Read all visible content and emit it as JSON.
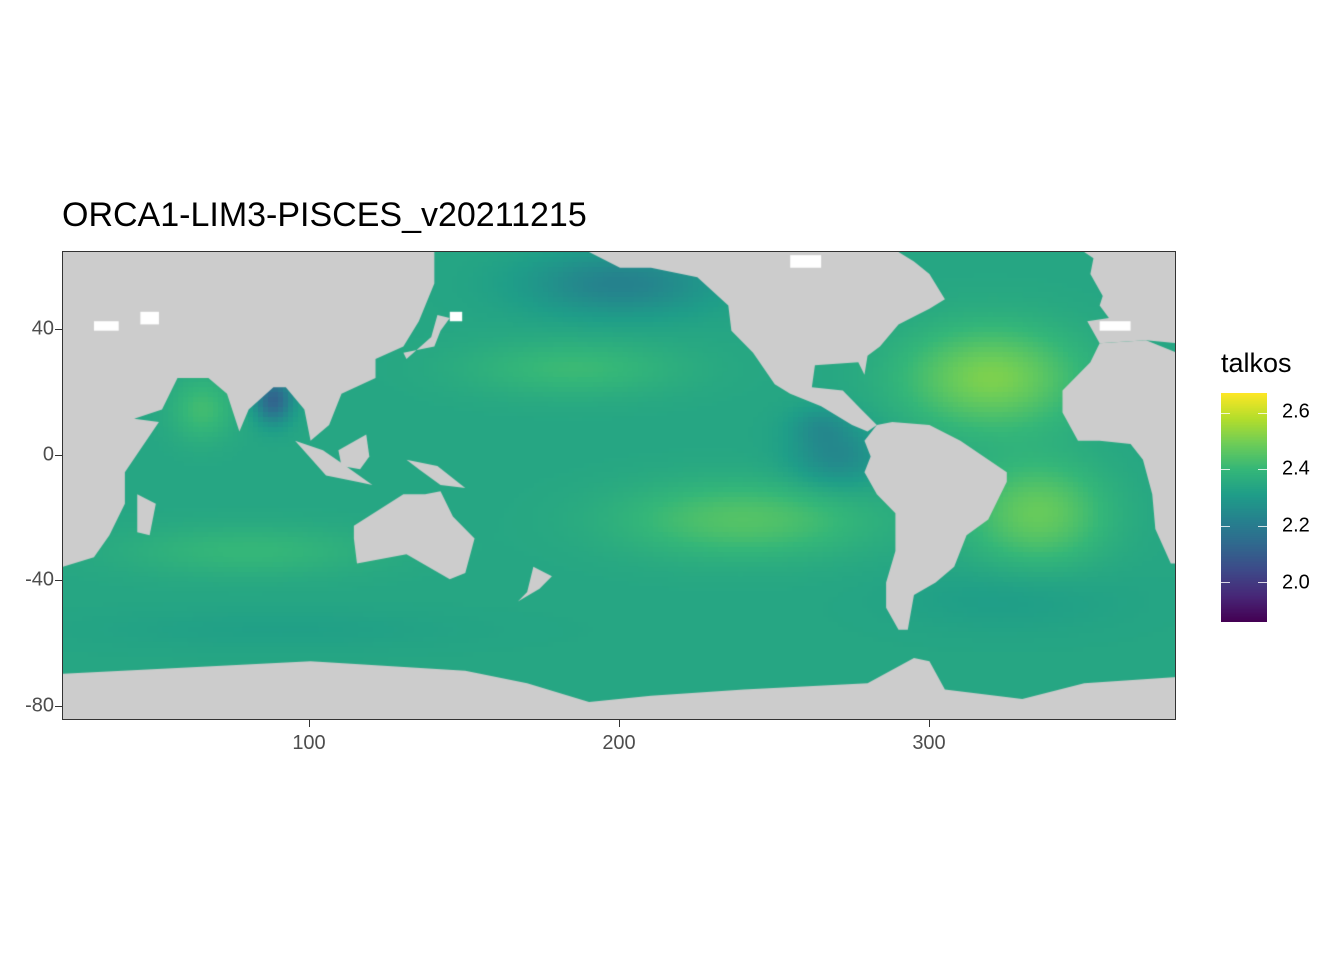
{
  "title": "ORCA1-LIM3-PISCES_v20211215",
  "chart_data": {
    "type": "heatmap",
    "title": "ORCA1-LIM3-PISCES_v20211215",
    "xlabel": "",
    "ylabel": "",
    "x_ticks": [
      "100",
      "200",
      "300"
    ],
    "y_ticks": [
      "40",
      "0",
      "-40",
      "-80"
    ],
    "x_tick_values": [
      100,
      200,
      300
    ],
    "y_tick_values": [
      40,
      0,
      -40,
      -80
    ],
    "xlim": [
      20,
      380
    ],
    "ylim": [
      -84,
      65
    ],
    "fill_variable": "talkos",
    "palette": "viridis",
    "fill_range": [
      1.86,
      2.67
    ],
    "legend_ticks": [
      "2.6",
      "2.4",
      "2.2",
      "2.0"
    ],
    "legend_tick_values": [
      2.6,
      2.4,
      2.2,
      2.0
    ],
    "legend_placement": "right",
    "land_color": "#cccccc",
    "grid": false
  }
}
